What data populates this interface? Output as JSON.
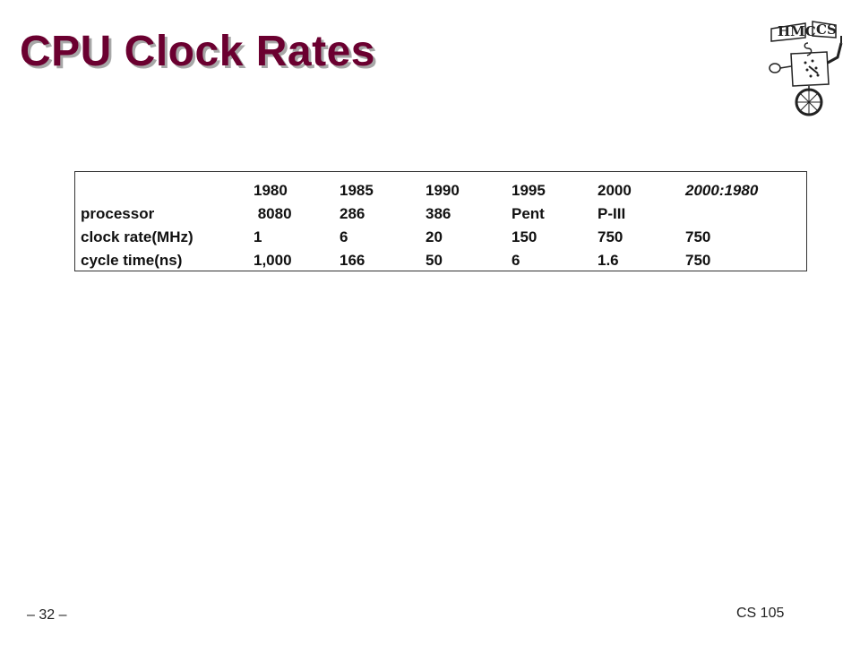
{
  "slide": {
    "title": "CPU Clock Rates",
    "page_number": "– 32 –",
    "course": "CS 105"
  },
  "logo": {
    "text_left": "HMC",
    "text_right": "CS",
    "mark": "5",
    "icon": "robot-logo-icon"
  },
  "table": {
    "header": [
      "",
      "1980",
      "1985",
      "1990",
      "1995",
      "2000",
      "2000:1980"
    ],
    "rows": [
      [
        "processor",
        " 8080",
        "286",
        "386",
        "Pent",
        "P-III",
        ""
      ],
      [
        "clock rate(MHz)",
        "1",
        "6",
        "20",
        "150",
        "750",
        "750"
      ],
      [
        "cycle time(ns)",
        "1,000",
        "166",
        "50",
        "6",
        "1.6",
        "750"
      ]
    ]
  }
}
